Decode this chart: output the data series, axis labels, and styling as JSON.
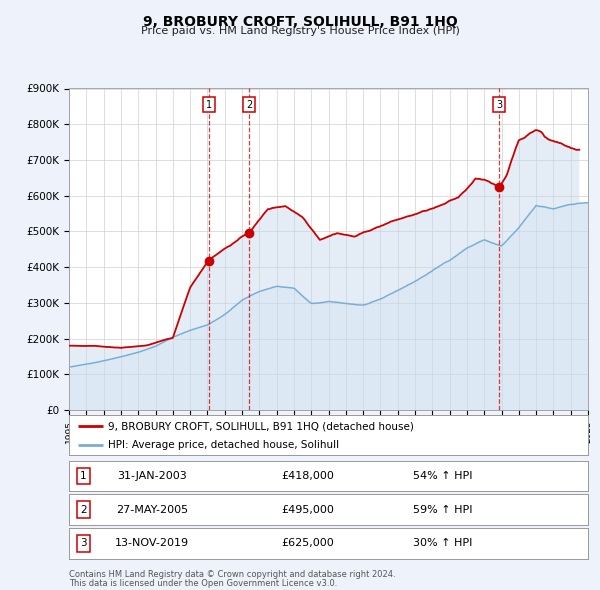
{
  "title": "9, BROBURY CROFT, SOLIHULL, B91 1HQ",
  "subtitle": "Price paid vs. HM Land Registry's House Price Index (HPI)",
  "legend_line1": "9, BROBURY CROFT, SOLIHULL, B91 1HQ (detached house)",
  "legend_line2": "HPI: Average price, detached house, Solihull",
  "footer1": "Contains HM Land Registry data © Crown copyright and database right 2024.",
  "footer2": "This data is licensed under the Open Government Licence v3.0.",
  "sale_color": "#cc0000",
  "hpi_color": "#7aadd4",
  "hpi_fill_color": "#c5d9ed",
  "background_color": "#eef2fb",
  "plot_bg_color": "#ffffff",
  "sale_points": [
    {
      "num": 1,
      "date_x": 2003.08,
      "price": 418000,
      "label": "31-JAN-2003",
      "amount": "£418,000",
      "pct": "54% ↑ HPI"
    },
    {
      "num": 2,
      "date_x": 2005.4,
      "price": 495000,
      "label": "27-MAY-2005",
      "amount": "£495,000",
      "pct": "59% ↑ HPI"
    },
    {
      "num": 3,
      "date_x": 2019.87,
      "price": 625000,
      "label": "13-NOV-2019",
      "amount": "£625,000",
      "pct": "30% ↑ HPI"
    }
  ],
  "xmin": 1995,
  "xmax": 2025,
  "ymin": 0,
  "ymax": 900000,
  "yticks": [
    0,
    100000,
    200000,
    300000,
    400000,
    500000,
    600000,
    700000,
    800000,
    900000
  ],
  "ytick_labels": [
    "£0",
    "£100K",
    "£200K",
    "£300K",
    "£400K",
    "£500K",
    "£600K",
    "£700K",
    "£800K",
    "£900K"
  ]
}
